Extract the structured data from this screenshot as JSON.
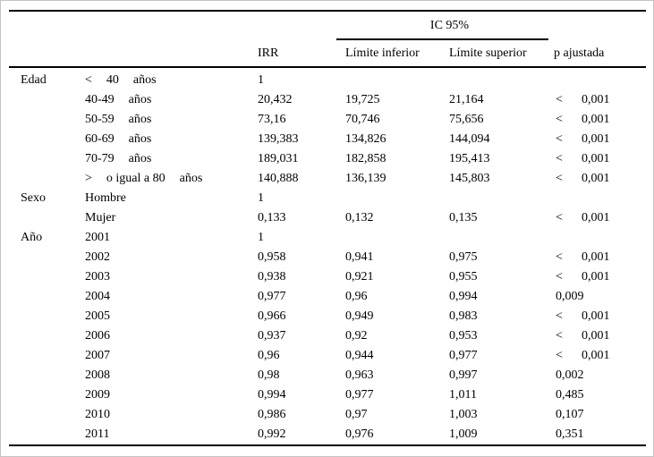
{
  "header": {
    "ic_span": "IC 95%",
    "irr": "IRR",
    "inferior": "Límite inferior",
    "superior": "Límite superior",
    "p": "p ajustada"
  },
  "table": {
    "groups": [
      {
        "label": "Edad",
        "rows": [
          {
            "cat": [
              "<",
              "40",
              "años"
            ],
            "irr": "1",
            "inf": "",
            "sup": "",
            "p": ""
          },
          {
            "cat": [
              "40-49",
              "años"
            ],
            "irr": "20,432",
            "inf": "19,725",
            "sup": "21,164",
            "p": "< 0,001"
          },
          {
            "cat": [
              "50-59",
              "años"
            ],
            "irr": "73,16",
            "inf": "70,746",
            "sup": "75,656",
            "p": "< 0,001"
          },
          {
            "cat": [
              "60-69",
              "años"
            ],
            "irr": "139,383",
            "inf": "134,826",
            "sup": "144,094",
            "p": "< 0,001"
          },
          {
            "cat": [
              "70-79",
              "años"
            ],
            "irr": "189,031",
            "inf": "182,858",
            "sup": "195,413",
            "p": "< 0,001"
          },
          {
            "cat": [
              ">",
              "o igual a 80",
              "años"
            ],
            "irr": "140,888",
            "inf": "136,139",
            "sup": "145,803",
            "p": "< 0,001"
          }
        ]
      },
      {
        "label": "Sexo",
        "rows": [
          {
            "cat": [
              "Hombre"
            ],
            "irr": "1",
            "inf": "",
            "sup": "",
            "p": ""
          },
          {
            "cat": [
              "Mujer"
            ],
            "irr": "0,133",
            "inf": "0,132",
            "sup": "0,135",
            "p": "< 0,001"
          }
        ]
      },
      {
        "label": "Año",
        "rows": [
          {
            "cat": [
              "2001"
            ],
            "irr": "1",
            "inf": "",
            "sup": "",
            "p": ""
          },
          {
            "cat": [
              "2002"
            ],
            "irr": "0,958",
            "inf": "0,941",
            "sup": "0,975",
            "p": "< 0,001"
          },
          {
            "cat": [
              "2003"
            ],
            "irr": "0,938",
            "inf": "0,921",
            "sup": "0,955",
            "p": "< 0,001"
          },
          {
            "cat": [
              "2004"
            ],
            "irr": "0,977",
            "inf": "0,96",
            "sup": "0,994",
            "p": "0,009"
          },
          {
            "cat": [
              "2005"
            ],
            "irr": "0,966",
            "inf": "0,949",
            "sup": "0,983",
            "p": "< 0,001"
          },
          {
            "cat": [
              "2006"
            ],
            "irr": "0,937",
            "inf": "0,92",
            "sup": "0,953",
            "p": "< 0,001"
          },
          {
            "cat": [
              "2007"
            ],
            "irr": "0,96",
            "inf": "0,944",
            "sup": "0,977",
            "p": "< 0,001"
          },
          {
            "cat": [
              "2008"
            ],
            "irr": "0,98",
            "inf": "0,963",
            "sup": "0,997",
            "p": "0,002"
          },
          {
            "cat": [
              "2009"
            ],
            "irr": "0,994",
            "inf": "0,977",
            "sup": "1,011",
            "p": "0,485"
          },
          {
            "cat": [
              "2010"
            ],
            "irr": "0,986",
            "inf": "0,97",
            "sup": "1,003",
            "p": "0,107"
          },
          {
            "cat": [
              "2011"
            ],
            "irr": "0,992",
            "inf": "0,976",
            "sup": "1,009",
            "p": "0,351"
          }
        ]
      }
    ]
  }
}
